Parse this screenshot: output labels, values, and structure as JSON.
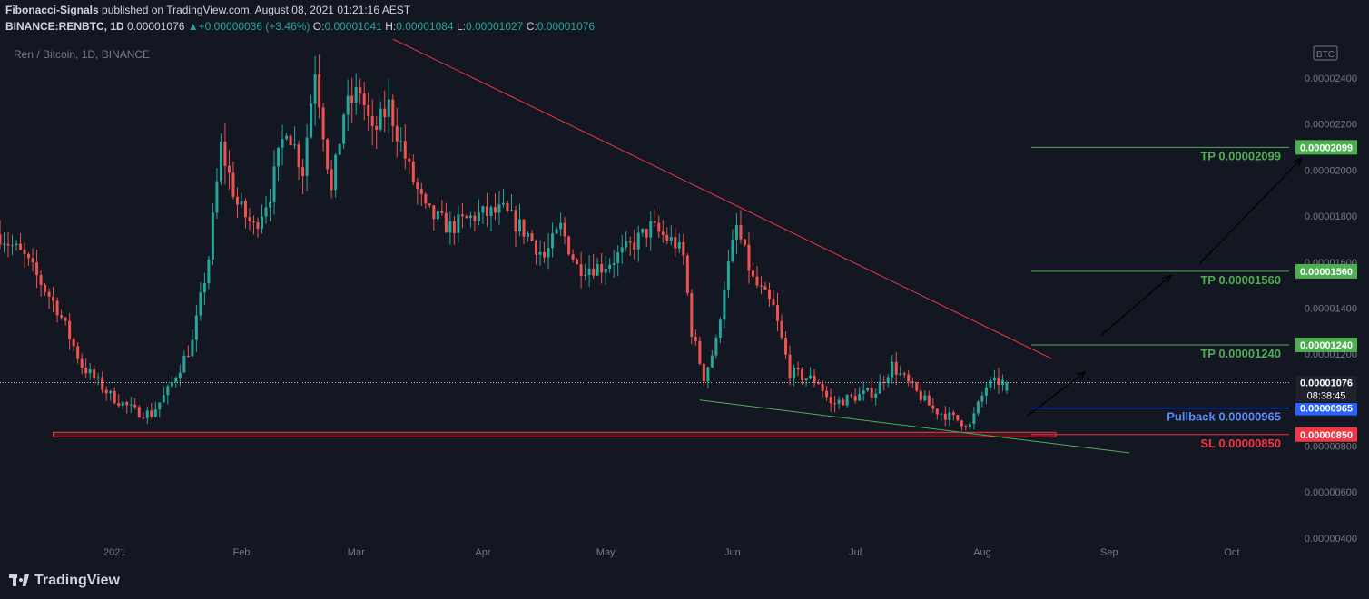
{
  "header": {
    "author": "Fibonacci-Signals",
    "published_text": " published on TradingView.com, August 08, 2021 01:21:16 AEST",
    "symbol": "BINANCE:RENBTC, 1D",
    "last": "0.00001076",
    "change": "+0.00000036 (+3.46%)",
    "open_label": "O:",
    "open": "0.00001041",
    "high_label": "H:",
    "high": "0.00001084",
    "low_label": "L:",
    "low": "0.00001027",
    "close_label": "C:",
    "close": "0.00001076"
  },
  "footer": {
    "brand": "TradingView"
  },
  "colors": {
    "background": "#131722",
    "up": "#26a69a",
    "down": "#ef5350",
    "trend_red": "#f23645",
    "tp_green": "#4caf50",
    "pullback_blue": "#2962ff",
    "text": "#d1d4dc",
    "axis_text": "#787b86"
  },
  "chart_data": {
    "type": "candlestick",
    "title": "Ren / Bitcoin, 1D, BINANCE",
    "currency_badge": "BTC",
    "x_axis": {
      "start": "2020-12-04",
      "end": "2021-10-15",
      "ticks": [
        {
          "date": "2021-01-01",
          "label": "2021"
        },
        {
          "date": "2021-02-01",
          "label": "Feb"
        },
        {
          "date": "2021-03-01",
          "label": "Mar"
        },
        {
          "date": "2021-04-01",
          "label": "Apr"
        },
        {
          "date": "2021-05-01",
          "label": "May"
        },
        {
          "date": "2021-06-01",
          "label": "Jun"
        },
        {
          "date": "2021-07-01",
          "label": "Jul"
        },
        {
          "date": "2021-08-01",
          "label": "Aug"
        },
        {
          "date": "2021-09-01",
          "label": "Sep"
        },
        {
          "date": "2021-10-01",
          "label": "Oct"
        }
      ]
    },
    "y_axis": {
      "range": [
        3.4e-06,
        2.57e-05
      ],
      "ticks": [
        "0.00000400",
        "0.00000600",
        "0.00000800",
        "0.00001000",
        "0.00001200",
        "0.00001400",
        "0.00001600",
        "0.00001800",
        "0.00002000",
        "0.00002200",
        "0.00002400"
      ]
    },
    "close_path": [
      [
        "2020-12-04",
        1.72e-05
      ],
      [
        "2020-12-10",
        1.62e-05
      ],
      [
        "2020-12-18",
        1.4e-05
      ],
      [
        "2020-12-24",
        1.15e-05
      ],
      [
        "2020-12-31",
        1.02e-05
      ],
      [
        "2021-01-06",
        9.5e-06
      ],
      [
        "2021-01-10",
        9.4e-06
      ],
      [
        "2021-01-14",
        1.04e-05
      ],
      [
        "2021-01-20",
        1.25e-05
      ],
      [
        "2021-01-24",
        1.62e-05
      ],
      [
        "2021-01-27",
        2.1e-05
      ],
      [
        "2021-01-31",
        1.85e-05
      ],
      [
        "2021-02-04",
        1.75e-05
      ],
      [
        "2021-02-08",
        1.9e-05
      ],
      [
        "2021-02-12",
        2.2e-05
      ],
      [
        "2021-02-16",
        2e-05
      ],
      [
        "2021-02-19",
        2.45e-05
      ],
      [
        "2021-02-23",
        1.9e-05
      ],
      [
        "2021-02-26",
        2.25e-05
      ],
      [
        "2021-03-02",
        2.35e-05
      ],
      [
        "2021-03-05",
        2.15e-05
      ],
      [
        "2021-03-09",
        2.28e-05
      ],
      [
        "2021-03-14",
        2e-05
      ],
      [
        "2021-03-18",
        1.82e-05
      ],
      [
        "2021-03-24",
        1.75e-05
      ],
      [
        "2021-03-30",
        1.8e-05
      ],
      [
        "2021-04-06",
        1.82e-05
      ],
      [
        "2021-04-12",
        1.72e-05
      ],
      [
        "2021-04-16",
        1.62e-05
      ],
      [
        "2021-04-20",
        1.75e-05
      ],
      [
        "2021-04-24",
        1.58e-05
      ],
      [
        "2021-04-30",
        1.58e-05
      ],
      [
        "2021-05-06",
        1.65e-05
      ],
      [
        "2021-05-12",
        1.75e-05
      ],
      [
        "2021-05-18",
        1.68e-05
      ],
      [
        "2021-05-20",
        1.62e-05
      ],
      [
        "2021-05-22",
        1.3e-05
      ],
      [
        "2021-05-25",
        1.1e-05
      ],
      [
        "2021-05-28",
        1.25e-05
      ],
      [
        "2021-05-30",
        1.5e-05
      ],
      [
        "2021-06-02",
        1.75e-05
      ],
      [
        "2021-06-06",
        1.52e-05
      ],
      [
        "2021-06-11",
        1.4e-05
      ],
      [
        "2021-06-15",
        1.12e-05
      ],
      [
        "2021-06-22",
        1.08e-05
      ],
      [
        "2021-06-25",
        9.8e-06
      ],
      [
        "2021-06-28",
        1e-05
      ],
      [
        "2021-07-06",
        1.04e-05
      ],
      [
        "2021-07-10",
        1.15e-05
      ],
      [
        "2021-07-15",
        1.05e-05
      ],
      [
        "2021-07-20",
        9.6e-06
      ],
      [
        "2021-07-25",
        9.2e-06
      ],
      [
        "2021-07-29",
        8.9e-06
      ],
      [
        "2021-08-02",
        1.06e-05
      ],
      [
        "2021-08-05",
        1.08e-05
      ],
      [
        "2021-08-07",
        1.07e-05
      ]
    ],
    "annotations": {
      "last_price": "0.00001076",
      "countdown": "08:38:45",
      "levels": [
        {
          "name": "TP 0.00002099",
          "value": 2.099e-05,
          "badge": "0.00002099",
          "kind": "tp"
        },
        {
          "name": "TP 0.00001560",
          "value": 1.56e-05,
          "badge": "0.00001560",
          "kind": "tp"
        },
        {
          "name": "TP 0.00001240",
          "value": 1.24e-05,
          "badge": "0.00001240",
          "kind": "tp"
        },
        {
          "name": "Pullback 0.00000965",
          "value": 9.65e-06,
          "badge": "0.00000965",
          "kind": "pullback"
        },
        {
          "name": "SL 0.00000850",
          "value": 8.5e-06,
          "badge": "0.00000850",
          "kind": "sl"
        }
      ],
      "resistance_trendline": [
        [
          "2021-03-10",
          2.57e-05
        ],
        [
          "2021-08-18",
          1.18e-05
        ]
      ],
      "support_trendline": [
        [
          "2021-05-24",
          1e-05
        ],
        [
          "2021-09-06",
          7.7e-06
        ]
      ],
      "support_zone": {
        "from": "2020-12-17",
        "to": "2021-08-19",
        "low": 8.4e-06,
        "high": 8.6e-06
      },
      "arrows": [
        [
          [
            "2021-08-12",
            9.3e-06
          ],
          [
            "2021-08-26",
            1.12e-05
          ]
        ],
        [
          [
            "2021-08-30",
            1.28e-05
          ],
          [
            "2021-09-16",
            1.54e-05
          ]
        ],
        [
          [
            "2021-09-23",
            1.59e-05
          ],
          [
            "2021-10-18",
            2.05e-05
          ]
        ]
      ]
    }
  }
}
